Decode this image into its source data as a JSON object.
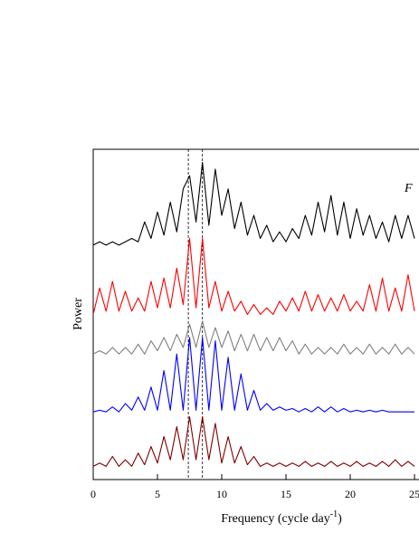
{
  "chart_data": {
    "type": "line",
    "annotation": "F",
    "x_label_parts": [
      "Frequency (cycle day",
      "-1",
      ")"
    ],
    "y_label": "Power",
    "xlim": [
      0,
      25.35
    ],
    "ylim": [
      0,
      100
    ],
    "xticks": [
      0,
      5,
      10,
      15,
      20,
      25
    ],
    "reference_lines": [
      7.4,
      8.5
    ],
    "x": [
      0,
      0.5,
      1,
      1.5,
      2,
      2.5,
      3,
      3.5,
      4,
      4.5,
      5,
      5.5,
      6,
      6.5,
      7,
      7.5,
      8,
      8.5,
      9,
      9.5,
      10,
      10.5,
      11,
      11.5,
      12,
      12.5,
      13,
      13.5,
      14,
      14.5,
      15,
      15.5,
      16,
      16.5,
      17,
      17.5,
      18,
      18.5,
      19,
      19.5,
      20,
      20.5,
      21,
      21.5,
      22,
      22.5,
      23,
      23.5,
      24,
      24.5,
      25
    ],
    "series": [
      {
        "color": "#000000",
        "values": [
          71,
          72,
          71,
          72,
          71,
          72,
          73,
          72,
          78,
          73,
          81,
          74,
          84,
          75,
          88,
          92,
          78,
          96,
          77,
          94,
          80,
          88,
          76,
          84,
          74,
          80,
          73,
          77,
          72,
          75,
          72,
          76,
          73,
          80,
          74,
          84,
          75,
          86,
          74,
          84,
          73,
          82,
          74,
          80,
          73,
          78,
          72,
          80,
          73,
          80,
          73
        ]
      },
      {
        "color": "#ff0000",
        "values": [
          50,
          58,
          51,
          60,
          51,
          57,
          51,
          55,
          51,
          60,
          52,
          61,
          52,
          64,
          53,
          73,
          52,
          73,
          52,
          60,
          51,
          57,
          51,
          54,
          50,
          53,
          50,
          52,
          50,
          54,
          51,
          55,
          51,
          57,
          51,
          56,
          51,
          55,
          51,
          56,
          51,
          54,
          51,
          59,
          51,
          61,
          51,
          58,
          51,
          62,
          51
        ]
      },
      {
        "color": "#808080",
        "values": [
          38,
          39,
          38,
          40,
          38,
          40,
          38,
          41,
          38,
          42,
          39,
          43,
          39,
          44,
          40,
          47,
          40,
          48,
          40,
          46,
          40,
          45,
          39,
          44,
          39,
          44,
          39,
          43,
          39,
          43,
          39,
          42,
          38,
          41,
          38,
          40,
          38,
          40,
          38,
          41,
          38,
          40,
          38,
          41,
          38,
          40,
          38,
          41,
          38,
          40,
          38
        ]
      },
      {
        "color": "#0000ff",
        "values": [
          20.5,
          21,
          20.5,
          22,
          20.5,
          23,
          21,
          25,
          21,
          28,
          21,
          33,
          21,
          38,
          21,
          43,
          21,
          43,
          21,
          42,
          21,
          37,
          21,
          32,
          21,
          27,
          21,
          23,
          21,
          22,
          21,
          21.5,
          20.5,
          21.5,
          20.5,
          22,
          20.5,
          22,
          20.5,
          21.5,
          20.5,
          21,
          20.5,
          21,
          20.5,
          21,
          20.5,
          20.5,
          20.5,
          20.5,
          20.5
        ]
      },
      {
        "color": "#800000",
        "values": [
          4,
          5,
          4,
          7,
          4,
          6,
          4,
          8,
          4.5,
          10,
          5,
          13,
          6,
          16,
          6,
          19,
          6,
          19,
          6,
          17,
          5,
          13,
          5,
          10,
          4.5,
          7,
          4,
          5,
          4,
          5,
          4,
          5,
          4,
          5.5,
          4,
          5,
          4,
          5.5,
          4,
          5,
          4,
          5.5,
          4,
          5,
          4,
          5.5,
          4,
          6,
          4,
          5.5,
          4
        ]
      }
    ]
  }
}
